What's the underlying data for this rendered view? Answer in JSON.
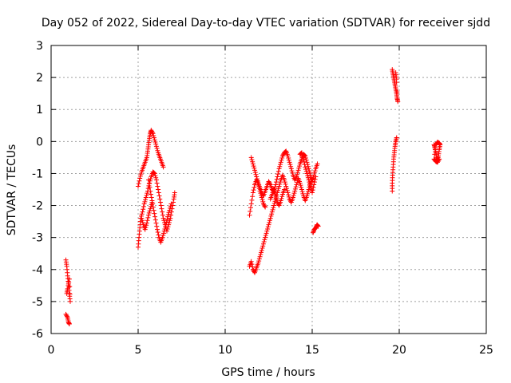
{
  "chart_data": {
    "type": "scatter",
    "title": "Day 052 of 2022, Sidereal Day-to-day VTEC variation (SDTVAR) for receiver sjdd",
    "xlabel": "GPS time / hours",
    "ylabel": "SDTVAR / TECUs",
    "xlim": [
      0,
      25
    ],
    "ylim": [
      -6,
      3
    ],
    "xticks": [
      0,
      5,
      10,
      15,
      20,
      25
    ],
    "yticks": [
      -6,
      -5,
      -4,
      -3,
      -2,
      -1,
      0,
      1,
      2,
      3
    ],
    "grid": true,
    "marker": "+",
    "color": "#ff0000",
    "series": [
      {
        "name": "SDTVAR",
        "segments": [
          [
            [
              0.85,
              -3.7
            ],
            [
              0.9,
              -3.9
            ],
            [
              0.95,
              -4.2
            ],
            [
              1.0,
              -4.45
            ],
            [
              1.05,
              -4.75
            ],
            [
              1.1,
              -5.0
            ],
            [
              1.05,
              -4.3
            ],
            [
              0.95,
              -4.6
            ],
            [
              0.9,
              -4.75
            ]
          ],
          [
            [
              0.85,
              -5.4
            ],
            [
              0.95,
              -5.5
            ],
            [
              1.0,
              -5.65
            ],
            [
              1.05,
              -5.7
            ]
          ],
          [
            [
              5.0,
              -3.3
            ],
            [
              5.05,
              -3.0
            ],
            [
              5.1,
              -2.7
            ],
            [
              5.15,
              -2.4
            ],
            [
              5.25,
              -2.2
            ],
            [
              5.35,
              -1.95
            ],
            [
              5.45,
              -1.75
            ],
            [
              5.55,
              -1.55
            ],
            [
              5.65,
              -1.3
            ],
            [
              5.75,
              -1.1
            ],
            [
              5.85,
              -0.95
            ],
            [
              5.95,
              -1.0
            ],
            [
              6.05,
              -1.2
            ],
            [
              6.15,
              -1.5
            ],
            [
              6.25,
              -1.8
            ],
            [
              6.35,
              -2.1
            ],
            [
              6.45,
              -2.4
            ],
            [
              6.55,
              -2.6
            ],
            [
              6.65,
              -2.8
            ],
            [
              6.75,
              -2.6
            ],
            [
              6.85,
              -2.4
            ],
            [
              6.95,
              -2.1
            ],
            [
              7.05,
              -1.8
            ],
            [
              7.1,
              -1.6
            ]
          ],
          [
            [
              5.0,
              -1.4
            ],
            [
              5.1,
              -1.15
            ],
            [
              5.2,
              -0.95
            ],
            [
              5.3,
              -0.8
            ],
            [
              5.4,
              -0.65
            ],
            [
              5.5,
              -0.5
            ],
            [
              5.55,
              -0.3
            ],
            [
              5.6,
              -0.1
            ],
            [
              5.65,
              0.1
            ],
            [
              5.7,
              0.25
            ],
            [
              5.75,
              0.35
            ],
            [
              5.85,
              0.25
            ],
            [
              5.95,
              0.05
            ],
            [
              6.05,
              -0.15
            ],
            [
              6.15,
              -0.35
            ],
            [
              6.25,
              -0.5
            ],
            [
              6.35,
              -0.65
            ],
            [
              6.45,
              -0.8
            ]
          ],
          [
            [
              5.6,
              -1.2
            ],
            [
              5.7,
              -1.55
            ],
            [
              5.8,
              -1.85
            ],
            [
              5.9,
              -2.15
            ],
            [
              6.0,
              -2.45
            ],
            [
              6.1,
              -2.75
            ],
            [
              6.2,
              -3.0
            ],
            [
              6.3,
              -3.15
            ],
            [
              6.4,
              -3.0
            ],
            [
              6.5,
              -2.8
            ],
            [
              6.6,
              -2.6
            ],
            [
              6.7,
              -2.35
            ],
            [
              6.8,
              -2.15
            ],
            [
              6.9,
              -1.95
            ]
          ],
          [
            [
              5.2,
              -2.4
            ],
            [
              5.3,
              -2.6
            ],
            [
              5.4,
              -2.75
            ],
            [
              5.5,
              -2.55
            ],
            [
              5.6,
              -2.3
            ],
            [
              5.7,
              -2.1
            ],
            [
              5.8,
              -1.9
            ]
          ],
          [
            [
              11.4,
              -2.3
            ],
            [
              11.5,
              -1.95
            ],
            [
              11.6,
              -1.6
            ],
            [
              11.7,
              -1.35
            ],
            [
              11.8,
              -1.2
            ],
            [
              11.9,
              -1.3
            ],
            [
              12.0,
              -1.45
            ],
            [
              12.1,
              -1.6
            ],
            [
              12.2,
              -1.7
            ],
            [
              12.3,
              -1.55
            ],
            [
              12.4,
              -1.4
            ],
            [
              12.5,
              -1.25
            ],
            [
              12.6,
              -1.35
            ],
            [
              12.7,
              -1.5
            ],
            [
              12.8,
              -1.55
            ],
            [
              12.9,
              -1.35
            ],
            [
              13.0,
              -1.1
            ],
            [
              13.1,
              -0.85
            ],
            [
              13.2,
              -0.65
            ],
            [
              13.3,
              -0.45
            ],
            [
              13.4,
              -0.35
            ],
            [
              13.5,
              -0.3
            ],
            [
              13.6,
              -0.45
            ],
            [
              13.7,
              -0.65
            ],
            [
              13.8,
              -0.85
            ],
            [
              13.9,
              -1.05
            ],
            [
              14.0,
              -1.2
            ],
            [
              14.1,
              -1.1
            ],
            [
              14.2,
              -0.9
            ],
            [
              14.3,
              -0.7
            ],
            [
              14.4,
              -0.55
            ],
            [
              14.5,
              -0.4
            ],
            [
              14.6,
              -0.45
            ],
            [
              14.7,
              -0.65
            ],
            [
              14.8,
              -0.85
            ],
            [
              14.9,
              -1.05
            ],
            [
              15.0,
              -1.25
            ],
            [
              15.1,
              -1.05
            ],
            [
              15.2,
              -0.85
            ],
            [
              15.3,
              -0.7
            ]
          ],
          [
            [
              11.5,
              -0.5
            ],
            [
              11.6,
              -0.7
            ],
            [
              11.7,
              -0.9
            ],
            [
              11.8,
              -1.1
            ],
            [
              11.9,
              -1.3
            ],
            [
              12.0,
              -1.55
            ],
            [
              12.1,
              -1.75
            ],
            [
              12.2,
              -1.95
            ],
            [
              12.3,
              -2.05
            ]
          ],
          [
            [
              11.4,
              -3.9
            ],
            [
              11.5,
              -3.75
            ],
            [
              11.6,
              -4.0
            ],
            [
              11.7,
              -4.1
            ],
            [
              11.8,
              -3.95
            ],
            [
              11.9,
              -3.8
            ],
            [
              12.0,
              -3.6
            ],
            [
              12.1,
              -3.4
            ],
            [
              12.2,
              -3.2
            ],
            [
              12.3,
              -3.0
            ],
            [
              12.4,
              -2.8
            ],
            [
              12.5,
              -2.6
            ],
            [
              12.6,
              -2.4
            ],
            [
              12.7,
              -2.2
            ],
            [
              12.8,
              -2.0
            ],
            [
              12.9,
              -1.8
            ],
            [
              13.0,
              -1.6
            ],
            [
              13.1,
              -1.4
            ],
            [
              13.2,
              -1.2
            ],
            [
              13.3,
              -1.05
            ],
            [
              13.4,
              -1.2
            ],
            [
              13.5,
              -1.4
            ],
            [
              13.6,
              -1.6
            ],
            [
              13.7,
              -1.8
            ],
            [
              13.8,
              -1.9
            ],
            [
              13.9,
              -1.75
            ],
            [
              14.0,
              -1.55
            ],
            [
              14.1,
              -1.35
            ],
            [
              14.2,
              -1.15
            ],
            [
              14.3,
              -1.3
            ],
            [
              14.4,
              -1.5
            ],
            [
              14.5,
              -1.7
            ],
            [
              14.6,
              -1.85
            ],
            [
              14.7,
              -1.7
            ],
            [
              14.8,
              -1.5
            ],
            [
              14.9,
              -1.3
            ],
            [
              15.0,
              -1.15
            ]
          ],
          [
            [
              12.6,
              -1.8
            ],
            [
              12.7,
              -1.65
            ],
            [
              12.8,
              -1.5
            ],
            [
              12.9,
              -1.7
            ],
            [
              13.0,
              -1.9
            ],
            [
              13.1,
              -2.0
            ],
            [
              13.2,
              -1.85
            ],
            [
              13.3,
              -1.65
            ],
            [
              13.4,
              -1.5
            ]
          ],
          [
            [
              14.3,
              -0.4
            ],
            [
              14.4,
              -0.35
            ],
            [
              14.5,
              -0.55
            ],
            [
              14.6,
              -0.8
            ],
            [
              14.7,
              -1.0
            ],
            [
              14.8,
              -1.2
            ],
            [
              14.9,
              -1.4
            ],
            [
              15.0,
              -1.6
            ],
            [
              15.1,
              -1.35
            ],
            [
              15.2,
              -1.1
            ]
          ],
          [
            [
              15.05,
              -2.85
            ],
            [
              15.12,
              -2.75
            ],
            [
              15.2,
              -2.7
            ],
            [
              15.28,
              -2.6
            ],
            [
              15.35,
              -2.65
            ]
          ],
          [
            [
              19.6,
              -1.55
            ],
            [
              19.6,
              -1.3
            ],
            [
              19.62,
              -1.05
            ],
            [
              19.65,
              -0.8
            ],
            [
              19.68,
              -0.55
            ],
            [
              19.72,
              -0.35
            ],
            [
              19.76,
              -0.15
            ],
            [
              19.8,
              0.0
            ],
            [
              19.85,
              0.12
            ]
          ],
          [
            [
              19.6,
              2.25
            ],
            [
              19.65,
              2.1
            ],
            [
              19.7,
              1.95
            ],
            [
              19.75,
              1.8
            ],
            [
              19.8,
              1.65
            ],
            [
              19.85,
              1.5
            ],
            [
              19.88,
              1.35
            ],
            [
              19.92,
              1.25
            ],
            [
              19.8,
              2.15
            ],
            [
              19.85,
              1.95
            ]
          ],
          [
            [
              22.0,
              -0.1
            ],
            [
              22.05,
              -0.2
            ],
            [
              22.1,
              -0.35
            ],
            [
              22.15,
              -0.5
            ],
            [
              22.2,
              -0.6
            ],
            [
              22.25,
              -0.45
            ],
            [
              22.3,
              -0.25
            ],
            [
              22.35,
              -0.1
            ],
            [
              22.3,
              -0.05
            ],
            [
              22.2,
              -0.02
            ],
            [
              22.1,
              -0.1
            ],
            [
              22.0,
              -0.55
            ],
            [
              22.1,
              -0.62
            ],
            [
              22.2,
              -0.65
            ],
            [
              22.3,
              -0.55
            ]
          ]
        ]
      }
    ]
  }
}
